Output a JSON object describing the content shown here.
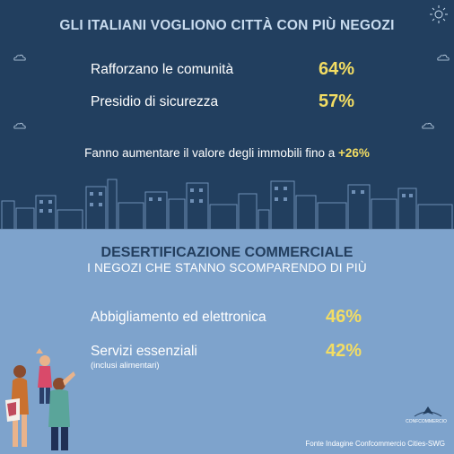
{
  "header": {
    "title": "GLI ITALIANI VOGLIONO CITTÀ CON PIÙ NEGOZI"
  },
  "stats_top": [
    {
      "label": "Rafforzano le comunità",
      "value": "64%"
    },
    {
      "label": "Presidio di sicurezza",
      "value": "57%"
    }
  ],
  "property": {
    "text": "Fanno aumentare il valore degli immobili fino a",
    "highlight": "+26%"
  },
  "section2": {
    "title": "DESERTIFICAZIONE COMMERCIALE",
    "subtitle": "I NEGOZI CHE STANNO SCOMPARENDO DI PIÙ"
  },
  "stats_bottom": [
    {
      "label": "Abbigliamento ed elettronica",
      "value": "46%"
    },
    {
      "label": "Servizi essenziali",
      "note": "(inclusi alimentari)",
      "value": "42%"
    }
  ],
  "logo": {
    "text": "CONFCOMMERCIO"
  },
  "source": "Fonte Indagine Confcommercio Cities-SWG",
  "colors": {
    "navy": "#223f5f",
    "light_blue": "#7ea3cc",
    "accent_yellow": "#f3dd63"
  },
  "icons": [
    "sun-icon",
    "cloud-icon",
    "city-skyline",
    "people-illustration",
    "confcommercio-logo"
  ]
}
